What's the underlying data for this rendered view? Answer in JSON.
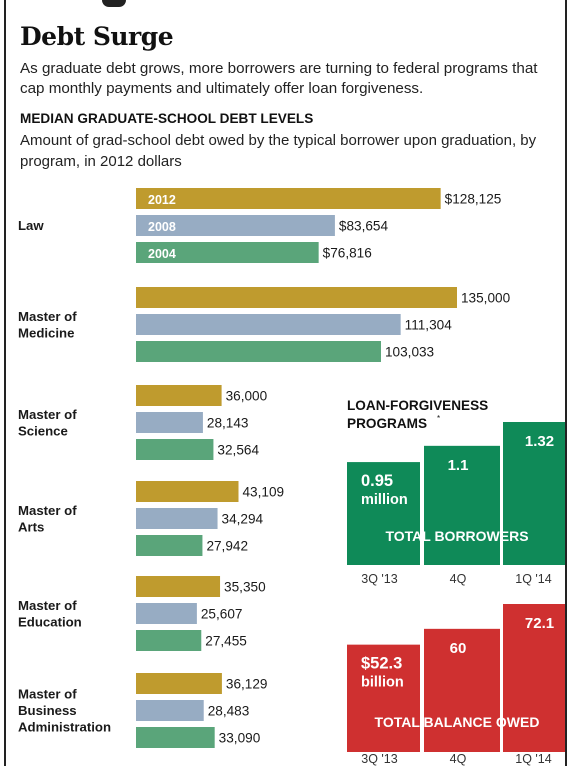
{
  "header": {
    "title": "Debt Surge",
    "subtitle": "As graduate debt grows, more borrowers are turning to federal programs that cap monthly payments and ultimately offer loan forgiveness."
  },
  "section": {
    "title": "MEDIAN GRADUATE-SCHOOL DEBT LEVELS",
    "description": "Amount of grad-school debt owed by the typical borrower upon graduation, by program, in 2012 dollars"
  },
  "colors": {
    "2012": "#bf9b2e",
    "2008": "#97acc3",
    "2004": "#5aa57a",
    "borrowers": "#0f8a58",
    "balance": "#cf3030"
  },
  "chart_data": [
    {
      "type": "bar",
      "orientation": "horizontal",
      "title": "MEDIAN GRADUATE-SCHOOL DEBT LEVELS",
      "categories": [
        [
          "Law"
        ],
        [
          "Master of",
          "Medicine"
        ],
        [
          "Master of",
          "Science"
        ],
        [
          "Master of",
          "Arts"
        ],
        [
          "Master of",
          "Education"
        ],
        [
          "Master of",
          "Business",
          "Administration"
        ]
      ],
      "series": [
        {
          "name": "2012",
          "values": [
            128125,
            135000,
            36000,
            43109,
            35350,
            36129
          ],
          "labels": [
            "$128,125",
            "135,000",
            "36,000",
            "43,109",
            "35,350",
            "36,129"
          ]
        },
        {
          "name": "2008",
          "values": [
            83654,
            111304,
            28143,
            34294,
            25607,
            28483
          ],
          "labels": [
            "$83,654",
            "111,304",
            "28,143",
            "34,294",
            "25,607",
            "28,483"
          ]
        },
        {
          "name": "2004",
          "values": [
            76816,
            103033,
            32564,
            27942,
            27455,
            33090
          ],
          "labels": [
            "$76,816",
            "103,033",
            "32,564",
            "27,942",
            "27,455",
            "33,090"
          ]
        }
      ],
      "xlim": [
        0,
        135000
      ],
      "grid": false,
      "legend": "inline-first-category"
    },
    {
      "type": "bar",
      "title": "LOAN-FORGIVENESS PROGRAMS",
      "title_lines": [
        "LOAN-FORGIVENESS",
        "PROGRAMS"
      ],
      "title_footnote_mark": "*",
      "panel_label": "TOTAL BORROWERS",
      "categories": [
        "3Q '13",
        "4Q",
        "1Q '14"
      ],
      "values": [
        0.95,
        1.1,
        1.32
      ],
      "value_labels": [
        [
          "0.95",
          "million"
        ],
        [
          "1.1"
        ],
        [
          "1.32"
        ]
      ],
      "unit": "million",
      "ylim": [
        0,
        1.32
      ]
    },
    {
      "type": "bar",
      "panel_label": "TOTAL BALANCE OWED",
      "categories": [
        "3Q '13",
        "4Q",
        "1Q '14"
      ],
      "values": [
        52.3,
        60,
        72.1
      ],
      "value_labels": [
        [
          "$52.3",
          "billion"
        ],
        [
          "60"
        ],
        [
          "72.1"
        ]
      ],
      "unit": "billion",
      "ylim": [
        0,
        72.1
      ]
    }
  ]
}
